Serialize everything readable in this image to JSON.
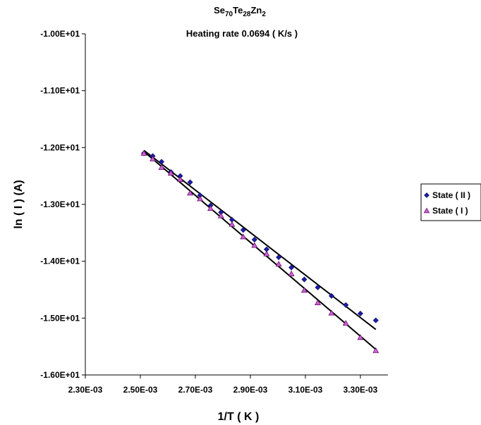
{
  "chart_data": {
    "type": "scatter",
    "title_main": "Se",
    "title_sub1": "70",
    "title_mid1": "Te",
    "title_sub2": "28",
    "title_mid2": "Zn",
    "title_sub3": "2",
    "subtitle": "Heating rate 0.0694 ( K/s )",
    "xlabel": "1/T ( K )",
    "ylabel": "ln  ( I ) (A)",
    "xlim": [
      0.0023,
      0.0034
    ],
    "ylim": [
      -16.0,
      -10.0
    ],
    "x_ticks": [
      0.0023,
      0.0025,
      0.0027,
      0.0029,
      0.0031,
      0.0033
    ],
    "x_tick_labels": [
      "2.30E-03",
      "2.50E-03",
      "2.70E-03",
      "2.90E-03",
      "3.10E-03",
      "3.30E-03"
    ],
    "y_ticks": [
      -10.0,
      -11.0,
      -12.0,
      -13.0,
      -14.0,
      -15.0,
      -16.0
    ],
    "y_tick_labels": [
      "-1.00E+01",
      "-1.10E+01",
      "-1.20E+01",
      "-1.30E+01",
      "-1.40E+01",
      "-1.50E+01",
      "-1.60E+01"
    ],
    "grid": false,
    "legend_position": "right",
    "series": [
      {
        "name": "State ( II )",
        "marker": "diamond",
        "color": "#1c1ca8",
        "x": [
          0.002513,
          0.002545,
          0.002577,
          0.002611,
          0.002645,
          0.002681,
          0.002717,
          0.002755,
          0.002793,
          0.002833,
          0.002874,
          0.002915,
          0.002959,
          0.003003,
          0.003049,
          0.003096,
          0.003145,
          0.003195,
          0.003247,
          0.0033,
          0.003356
        ],
        "y": [
          -12.1,
          -12.15,
          -12.25,
          -12.43,
          -12.5,
          -12.61,
          -12.84,
          -13.02,
          -13.14,
          -13.27,
          -13.45,
          -13.62,
          -13.79,
          -13.93,
          -14.11,
          -14.32,
          -14.46,
          -14.61,
          -14.77,
          -14.92,
          -15.04
        ]
      },
      {
        "name": "State ( I )",
        "marker": "triangle",
        "color": "#d060d8",
        "x": [
          0.002513,
          0.002545,
          0.002577,
          0.002611,
          0.002645,
          0.002681,
          0.002717,
          0.002755,
          0.002793,
          0.002833,
          0.002874,
          0.002915,
          0.002959,
          0.003003,
          0.003049,
          0.003096,
          0.003145,
          0.003195,
          0.003247,
          0.0033,
          0.003356
        ],
        "y": [
          -12.1,
          -12.2,
          -12.35,
          -12.45,
          -12.56,
          -12.8,
          -12.9,
          -13.07,
          -13.2,
          -13.35,
          -13.57,
          -13.72,
          -13.87,
          -14.05,
          -14.22,
          -14.51,
          -14.73,
          -14.91,
          -15.09,
          -15.34,
          -15.57
        ]
      }
    ],
    "trendlines": [
      {
        "series": "State ( II )",
        "x": [
          0.002513,
          0.003356
        ],
        "y": [
          -12.05,
          -15.2
        ]
      },
      {
        "series": "State ( I )",
        "x": [
          0.002513,
          0.003356
        ],
        "y": [
          -12.07,
          -15.55
        ]
      }
    ]
  }
}
